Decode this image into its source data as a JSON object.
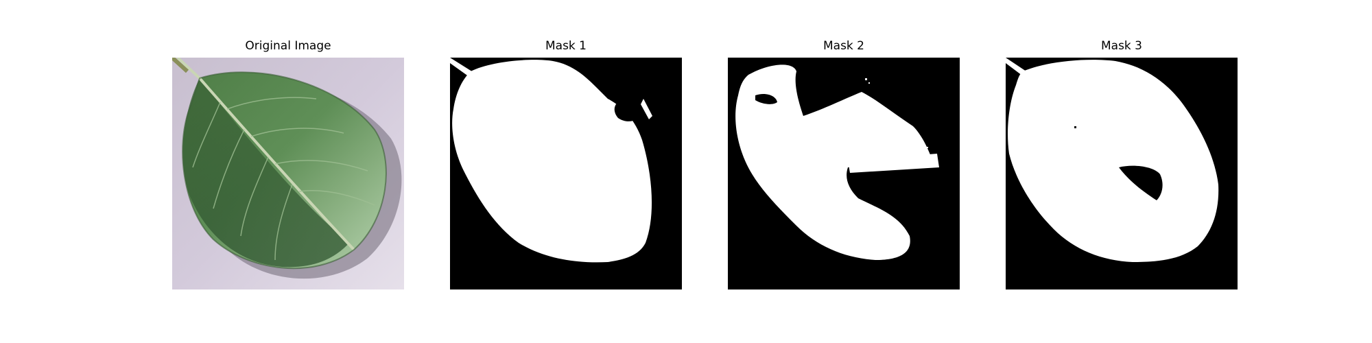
{
  "figure": {
    "panels": [
      {
        "title": "Original Image",
        "image": "leaf-photo"
      },
      {
        "title": "Mask 1",
        "image": "binary-mask"
      },
      {
        "title": "Mask 2",
        "image": "binary-mask"
      },
      {
        "title": "Mask 3",
        "image": "binary-mask"
      }
    ],
    "colors": {
      "background": "#ffffff",
      "mask_background": "#000000",
      "mask_foreground": "#ffffff",
      "leaf_dark": "#3f6a3a",
      "leaf_light": "#a9c9a2",
      "backdrop": "#cfc6d6"
    }
  }
}
